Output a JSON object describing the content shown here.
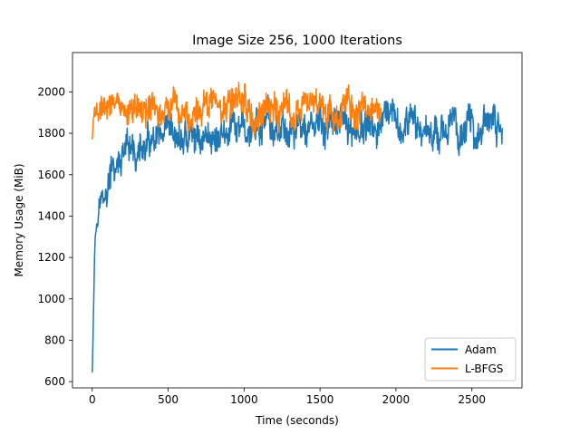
{
  "chart_data": {
    "type": "line",
    "title": "Image Size 256, 1000 Iterations",
    "xlabel": "Time (seconds)",
    "ylabel": "Memory Usage (MiB)",
    "xlim": [
      -130,
      2830
    ],
    "ylim": [
      570,
      2190
    ],
    "xticks": [
      0,
      500,
      1000,
      1500,
      2000,
      2500
    ],
    "yticks": [
      600,
      800,
      1000,
      1200,
      1400,
      1600,
      1800,
      2000
    ],
    "grid": false,
    "legend_position": "lower-right",
    "series": [
      {
        "name": "Adam",
        "color": "#1f77b4",
        "x": [
          0,
          5,
          10,
          15,
          20,
          30,
          40,
          50,
          60,
          80,
          100,
          120,
          150,
          180,
          200,
          250,
          300,
          350,
          400,
          450,
          500,
          550,
          600,
          700,
          800,
          900,
          1000,
          1100,
          1200,
          1300,
          1400,
          1500,
          1600,
          1700,
          1800,
          1900,
          2000,
          2100,
          2200,
          2300,
          2400,
          2500,
          2600,
          2700
        ],
        "values": [
          645,
          800,
          1000,
          1200,
          1300,
          1400,
          1450,
          1480,
          1500,
          1470,
          1520,
          1580,
          1620,
          1650,
          1660,
          1690,
          1700,
          1720,
          1730,
          1740,
          1750,
          1760,
          1770,
          1780,
          1790,
          1800,
          1810,
          1820,
          1815,
          1820,
          1825,
          1820,
          1830,
          1825,
          1820,
          1825,
          1830,
          1820,
          1825,
          1830,
          1825,
          1830,
          1825,
          1830
        ],
        "noise_amplitude": [
          0,
          0,
          0,
          0,
          20,
          40,
          50,
          50,
          50,
          60,
          70,
          80,
          80,
          80,
          80,
          80,
          80,
          80,
          80,
          80,
          80,
          80,
          80,
          80,
          80,
          80,
          80,
          80,
          80,
          80,
          80,
          80,
          80,
          80,
          80,
          80,
          80,
          80,
          80,
          80,
          80,
          80,
          80,
          80
        ]
      },
      {
        "name": "L-BFGS",
        "color": "#ff7f0e",
        "x": [
          0,
          10,
          20,
          50,
          100,
          200,
          300,
          400,
          500,
          600,
          700,
          800,
          900,
          1000,
          1100,
          1200,
          1300,
          1400,
          1500,
          1600,
          1700,
          1800,
          1900
        ],
        "values": [
          1770,
          1900,
          1930,
          1920,
          1910,
          1920,
          1915,
          1920,
          1925,
          1915,
          1920,
          1930,
          1910,
          1920,
          1915,
          1920,
          1910,
          1920,
          1915,
          1910,
          1920,
          1900,
          1910
        ],
        "noise_amplitude": [
          0,
          40,
          60,
          70,
          75,
          75,
          75,
          75,
          75,
          75,
          75,
          75,
          75,
          75,
          75,
          75,
          75,
          75,
          75,
          75,
          75,
          75,
          70
        ]
      }
    ]
  }
}
